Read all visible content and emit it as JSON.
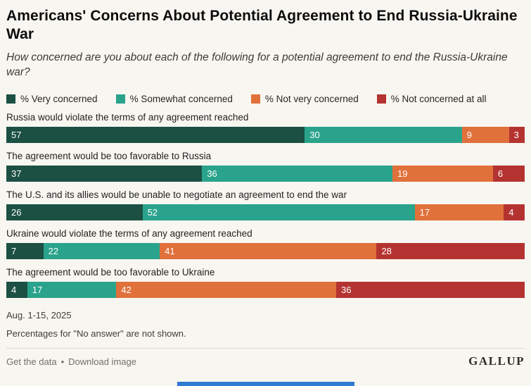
{
  "header": {
    "title": "Americans' Concerns About Potential Agreement to End Russia-Ukraine War",
    "subtitle": "How concerned are you about each of the following for a potential agreement to end the Russia-Ukraine war?"
  },
  "legend": [
    {
      "label": "% Very concerned",
      "color": "#1b5043"
    },
    {
      "label": "% Somewhat concerned",
      "color": "#2aa38c"
    },
    {
      "label": "% Not very concerned",
      "color": "#e0713b"
    },
    {
      "label": "% Not concerned at all",
      "color": "#b43331"
    }
  ],
  "chart_data": {
    "type": "bar",
    "variant": "horizontal-stacked",
    "unit": "percent",
    "legend_position": "top",
    "categories": [
      "Russia would violate the terms of any agreement reached",
      "The agreement would be too favorable to Russia",
      "The U.S. and its allies would be unable to negotiate an agreement to end the war",
      "Ukraine would violate the terms of any agreement reached",
      "The agreement would be too favorable to Ukraine"
    ],
    "series": [
      {
        "name": "% Very concerned",
        "color": "#1b5043",
        "values": [
          57,
          37,
          26,
          7,
          4
        ]
      },
      {
        "name": "% Somewhat concerned",
        "color": "#2aa38c",
        "values": [
          30,
          36,
          52,
          22,
          17
        ]
      },
      {
        "name": "% Not very concerned",
        "color": "#e0713b",
        "values": [
          9,
          19,
          17,
          41,
          42
        ]
      },
      {
        "name": "% Not concerned at all",
        "color": "#b43331",
        "values": [
          3,
          6,
          4,
          28,
          36
        ]
      }
    ],
    "note": "Percentages for \"No answer\" are not shown."
  },
  "footer": {
    "date_range": "Aug. 1-15, 2025",
    "note": "Percentages for \"No answer\" are not shown."
  },
  "toolbar": {
    "get_data_label": "Get the data",
    "separator": "•",
    "download_label": "Download image",
    "brand": "GALLUP"
  }
}
